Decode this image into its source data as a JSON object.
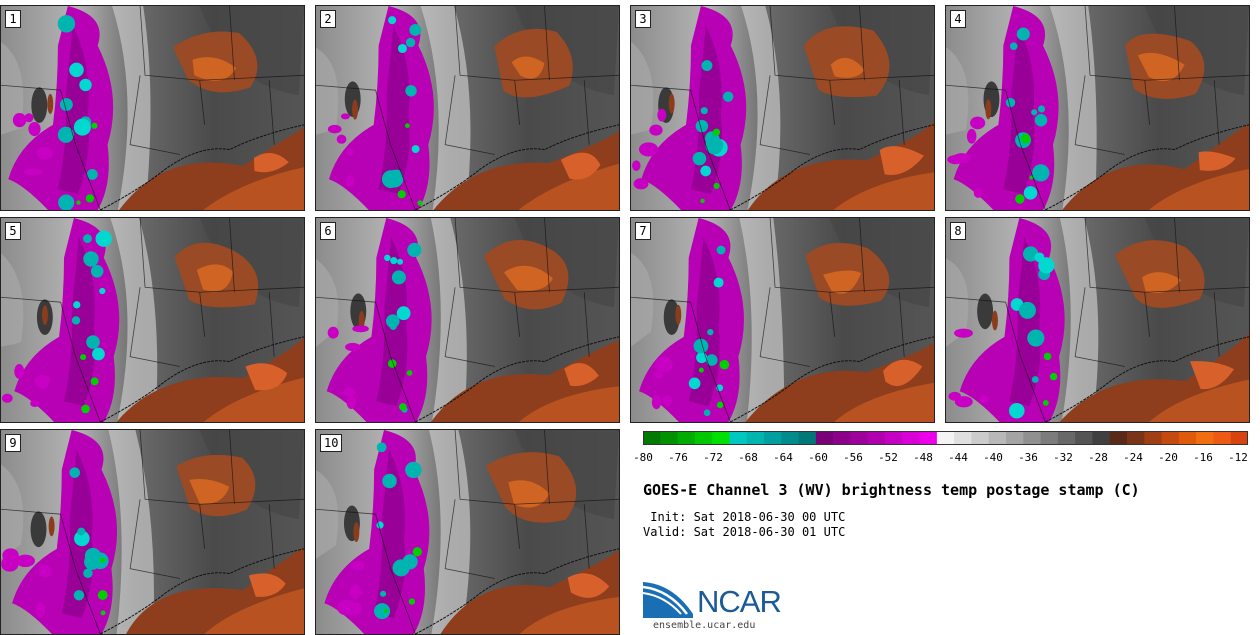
{
  "panels": [
    {
      "label": "1"
    },
    {
      "label": "2"
    },
    {
      "label": "3"
    },
    {
      "label": "4"
    },
    {
      "label": "5"
    },
    {
      "label": "6"
    },
    {
      "label": "7"
    },
    {
      "label": "8"
    },
    {
      "label": "9"
    },
    {
      "label": "10"
    }
  ],
  "colorbar": {
    "ticks": [
      "-80",
      "-76",
      "-72",
      "-68",
      "-64",
      "-60",
      "-56",
      "-52",
      "-48",
      "-44",
      "-40",
      "-36",
      "-32",
      "-28",
      "-24",
      "-20",
      "-16",
      "-12"
    ],
    "colors": [
      "#007a00",
      "#009200",
      "#00ac00",
      "#00c800",
      "#00e000",
      "#00c8c0",
      "#00b4b0",
      "#00a0a0",
      "#008c8c",
      "#007878",
      "#7a0078",
      "#8c008a",
      "#9e009c",
      "#b000ae",
      "#c400c2",
      "#d800d6",
      "#ec00ea",
      "#f4f4f4",
      "#e0e0e0",
      "#cccccc",
      "#b8b8b8",
      "#a4a4a4",
      "#909090",
      "#7c7c7c",
      "#686868",
      "#545454",
      "#404040",
      "#5a2a18",
      "#7a3418",
      "#a03e14",
      "#c44a10",
      "#e05a0c",
      "#f06e10",
      "#ec5a14",
      "#d84410"
    ]
  },
  "title": "GOES-E Channel 3 (WV) brightness temp postage stamp (C)",
  "init": " Init: Sat 2018-06-30 00 UTC",
  "valid": "Valid: Sat 2018-06-30 01 UTC",
  "logo": {
    "text": "NCAR",
    "url": "ensemble.ucar.edu"
  }
}
